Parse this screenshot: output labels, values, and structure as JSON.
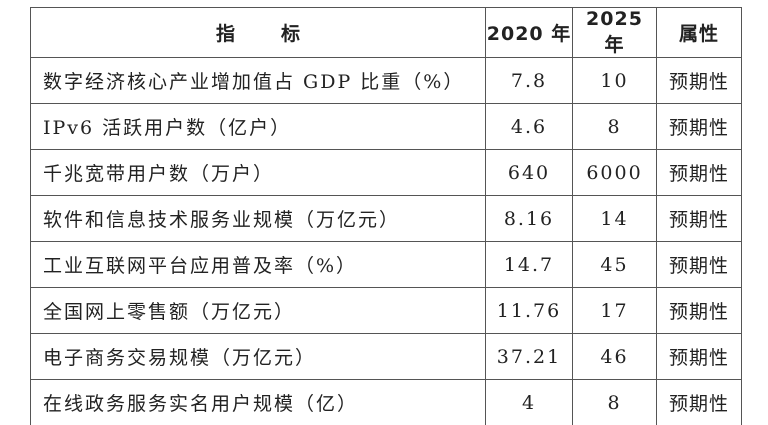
{
  "table": {
    "headers": {
      "indicator": "指标",
      "y2020": "2020 年",
      "y2025": "2025 年",
      "attribute": "属性"
    },
    "rows": [
      {
        "indicator": "数字经济核心产业增加值占 GDP 比重（%）",
        "y2020": "7.8",
        "y2025": "10",
        "attribute": "预期性"
      },
      {
        "indicator": "IPv6 活跃用户数（亿户）",
        "y2020": "4.6",
        "y2025": "8",
        "attribute": "预期性"
      },
      {
        "indicator": "千兆宽带用户数（万户）",
        "y2020": "640",
        "y2025": "6000",
        "attribute": "预期性"
      },
      {
        "indicator": "软件和信息技术服务业规模（万亿元）",
        "y2020": "8.16",
        "y2025": "14",
        "attribute": "预期性"
      },
      {
        "indicator": "工业互联网平台应用普及率（%）",
        "y2020": "14.7",
        "y2025": "45",
        "attribute": "预期性"
      },
      {
        "indicator": "全国网上零售额（万亿元）",
        "y2020": "11.76",
        "y2025": "17",
        "attribute": "预期性"
      },
      {
        "indicator": "电子商务交易规模（万亿元）",
        "y2020": "37.21",
        "y2025": "46",
        "attribute": "预期性"
      },
      {
        "indicator": "在线政务服务实名用户规模（亿）",
        "y2020": "4",
        "y2025": "8",
        "attribute": "预期性"
      }
    ]
  }
}
